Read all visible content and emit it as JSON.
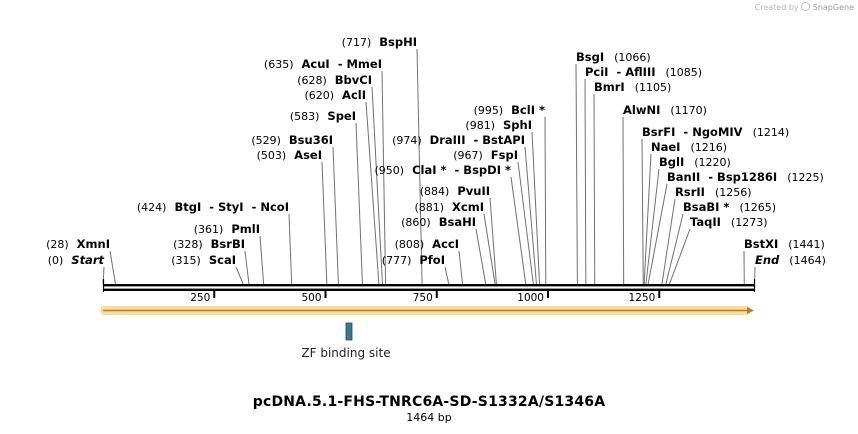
{
  "credit": {
    "prefix": "Created by",
    "brand": "SnapGene"
  },
  "title": "pcDNA.5.1-FHS-TNRC6A-SD-S1332A/S1346A",
  "length_label": "1464 bp",
  "ruler": {
    "ticks": [
      "250",
      "500",
      "750",
      "1000",
      "1250"
    ]
  },
  "feature_label": "ZF binding site",
  "sites": [
    {
      "label": "(0)",
      "name": "Start",
      "italic": true
    },
    {
      "label": "(28)",
      "name": "XmnI"
    },
    {
      "label": "(315)",
      "name": "ScaI"
    },
    {
      "label": "(328)",
      "name": "BsrBI"
    },
    {
      "label": "(361)",
      "name": "PmlI"
    },
    {
      "label": "(424)",
      "name": "BtgI  - StyI  - NcoI"
    },
    {
      "label": "(503)",
      "name": "AseI"
    },
    {
      "label": "(529)",
      "name": "Bsu36I"
    },
    {
      "label": "(583)",
      "name": "SpeI"
    },
    {
      "label": "(620)",
      "name": "AclI"
    },
    {
      "label": "(628)",
      "name": "BbvCI"
    },
    {
      "label": "(635)",
      "name": "AcuI  - MmeI"
    },
    {
      "label": "(717)",
      "name": "BspHI"
    },
    {
      "label": "(777)",
      "name": "PfoI"
    },
    {
      "label": "(808)",
      "name": "AccI"
    },
    {
      "label": "(860)",
      "name": "BsaHI"
    },
    {
      "label": "(881)",
      "name": "XcmI"
    },
    {
      "label": "(884)",
      "name": "PvuII"
    },
    {
      "label": "(950)",
      "name": "ClaI *  - BspDI *"
    },
    {
      "label": "(967)",
      "name": "FspI"
    },
    {
      "label": "(974)",
      "name": "DraIII  - BstAPI"
    },
    {
      "label": "(981)",
      "name": "SphI"
    },
    {
      "label": "(995)",
      "name": "BclI *"
    },
    {
      "label": "(1066)",
      "name": "BsgI"
    },
    {
      "label": "(1085)",
      "name": "PciI  - AflIII"
    },
    {
      "label": "(1105)",
      "name": "BmrI"
    },
    {
      "label": "(1170)",
      "name": "AlwNI"
    },
    {
      "label": "(1214)",
      "name": "BsrFI  - NgoMIV"
    },
    {
      "label": "(1216)",
      "name": "NaeI"
    },
    {
      "label": "(1220)",
      "name": "BglI"
    },
    {
      "label": "(1225)",
      "name": "BanII  - Bsp1286I"
    },
    {
      "label": "(1256)",
      "name": "RsrII"
    },
    {
      "label": "(1265)",
      "name": "BsaBI *"
    },
    {
      "label": "(1273)",
      "name": "TaqII"
    },
    {
      "label": "(1441)",
      "name": "BstXI"
    },
    {
      "label": "(1464)",
      "name": "End",
      "italic": true
    }
  ]
}
